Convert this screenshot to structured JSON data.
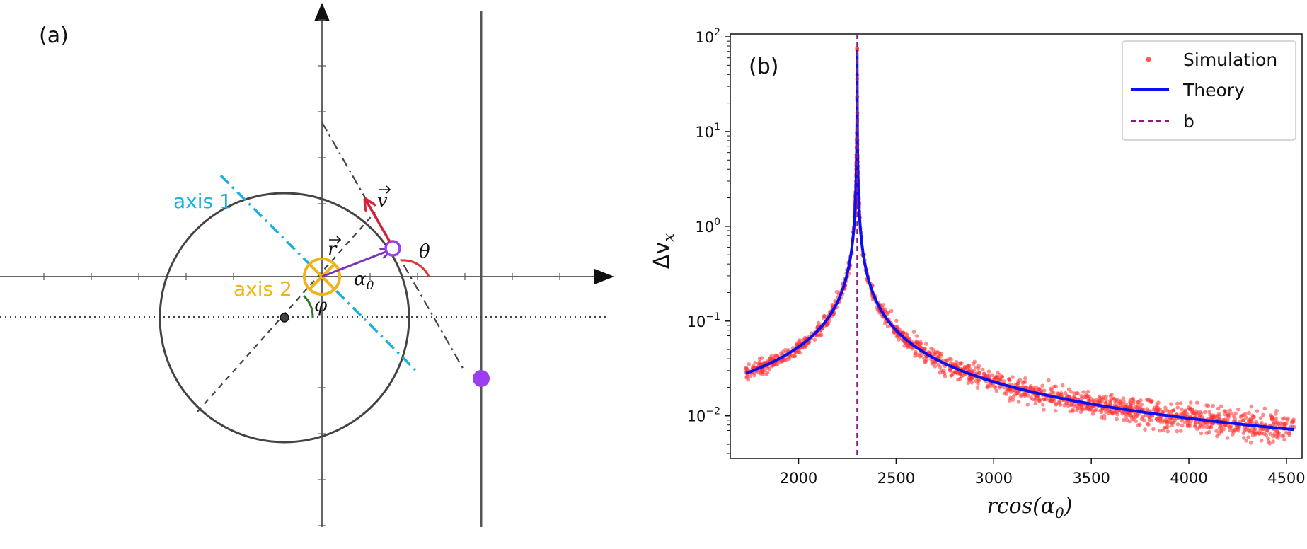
{
  "panel_a": {
    "label": "(a)",
    "axis1_label": "axis 1",
    "axis2_label": "axis 2",
    "v_label": "v",
    "r_label": "r",
    "theta_label": "θ",
    "phi_label": "φ",
    "alpha_label": "α",
    "alpha_sub": "0",
    "colors": {
      "axis1": "#1ab0e0",
      "axis2": "#f0b419",
      "velocity": "#d4223a",
      "position": "#7a35b5",
      "particle": "#9b3df0",
      "theta_arc": "#e03333",
      "phi_arc": "#2f7a2f"
    }
  },
  "chart_data": {
    "type": "scatter",
    "panel_label": "(b)",
    "xlabel": "rcos(α",
    "xlabel_sub": "0",
    "ylabel": "Δv",
    "ylabel_sub": "x",
    "xlim": [
      1650,
      4580
    ],
    "ylim_log10": [
      -2.45,
      2.03
    ],
    "yscale": "log",
    "grid": false,
    "legend_position": "top-right",
    "xticks": [
      2000,
      2500,
      3000,
      3500,
      4000,
      4500
    ],
    "yticks": [
      {
        "base": "10",
        "exp": "2",
        "log": 2
      },
      {
        "base": "10",
        "exp": "1",
        "log": 1
      },
      {
        "base": "10",
        "exp": "0",
        "log": 0
      },
      {
        "base": "10",
        "exp": "−1",
        "log": -1
      },
      {
        "base": "10",
        "exp": "−2",
        "log": -2
      }
    ],
    "b": 2300,
    "series": [
      {
        "name": "Simulation",
        "kind": "scatter",
        "color": "#ff3030",
        "x_range": [
          1730,
          4540
        ],
        "noise_log10": 0.035
      },
      {
        "name": "Theory",
        "kind": "line",
        "color": "#0a10f0",
        "model": "Δv = 16 / |x − b|",
        "x_range": [
          1730,
          4540
        ],
        "peak": 70
      },
      {
        "name": "b",
        "kind": "vline",
        "color": "#8b1a8b",
        "x": 2300
      }
    ],
    "sample_points": [
      {
        "x": 1750,
        "y": 0.028
      },
      {
        "x": 2000,
        "y": 0.053
      },
      {
        "x": 2200,
        "y": 0.16
      },
      {
        "x": 2280,
        "y": 1.0
      },
      {
        "x": 2300,
        "y": 70
      },
      {
        "x": 2350,
        "y": 0.32
      },
      {
        "x": 2500,
        "y": 0.08
      },
      {
        "x": 3000,
        "y": 0.023
      },
      {
        "x": 3500,
        "y": 0.0133
      },
      {
        "x": 4000,
        "y": 0.0094
      },
      {
        "x": 4530,
        "y": 0.0071
      }
    ]
  }
}
